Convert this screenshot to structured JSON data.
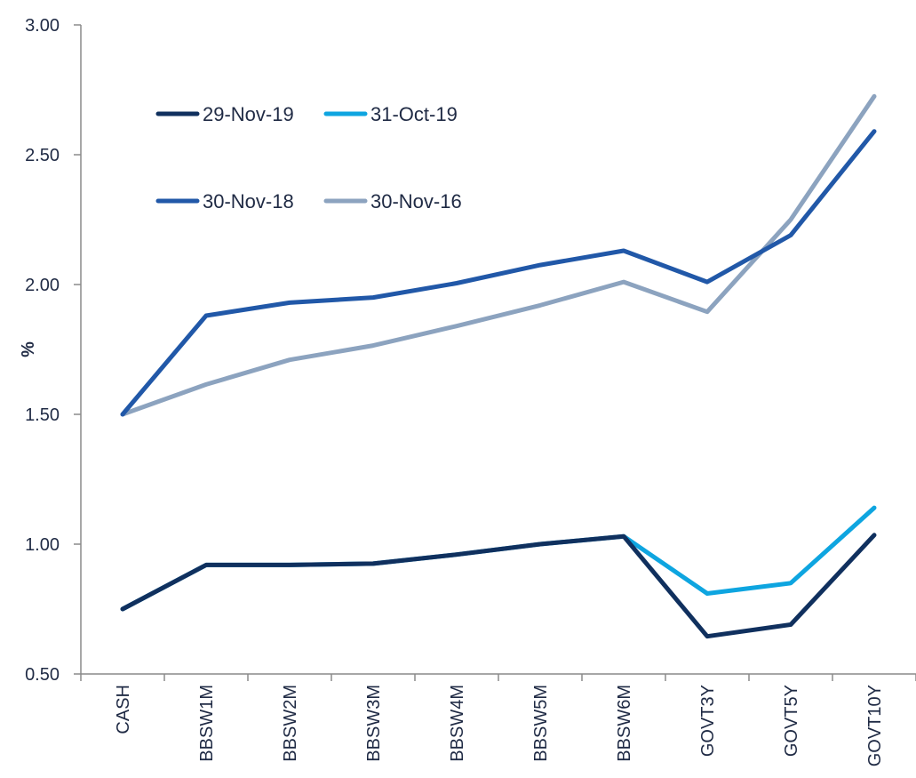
{
  "chart_data": {
    "type": "line",
    "title": "",
    "xlabel": "",
    "ylabel": "%",
    "ylim": [
      0.5,
      3.0
    ],
    "yticks": [
      "0.50",
      "1.00",
      "1.50",
      "2.00",
      "2.50",
      "3.00"
    ],
    "grid": false,
    "legend_position": "top-left",
    "categories": [
      "CASH",
      "BBSW1M",
      "BBSW2M",
      "BBSW3M",
      "BBSW4M",
      "BBSW5M",
      "BBSW6M",
      "GOVT3Y",
      "GOVT5Y",
      "GOVT10Y"
    ],
    "series": [
      {
        "name": "29-Nov-19",
        "color": "#10305e",
        "values": [
          0.75,
          0.92,
          0.92,
          0.925,
          0.96,
          1.0,
          1.03,
          0.645,
          0.69,
          1.035
        ]
      },
      {
        "name": "31-Oct-19",
        "color": "#0ea5e0",
        "values": [
          0.75,
          0.92,
          0.92,
          0.925,
          0.96,
          1.0,
          1.03,
          0.81,
          0.85,
          1.14
        ]
      },
      {
        "name": "30-Nov-18",
        "color": "#2158a8",
        "values": [
          1.5,
          1.88,
          1.93,
          1.95,
          2.005,
          2.075,
          2.13,
          2.01,
          2.19,
          2.59
        ]
      },
      {
        "name": "30-Nov-16",
        "color": "#8ca3bf",
        "values": [
          1.5,
          1.615,
          1.71,
          1.765,
          1.84,
          1.92,
          2.01,
          1.895,
          2.25,
          2.725
        ]
      }
    ]
  }
}
